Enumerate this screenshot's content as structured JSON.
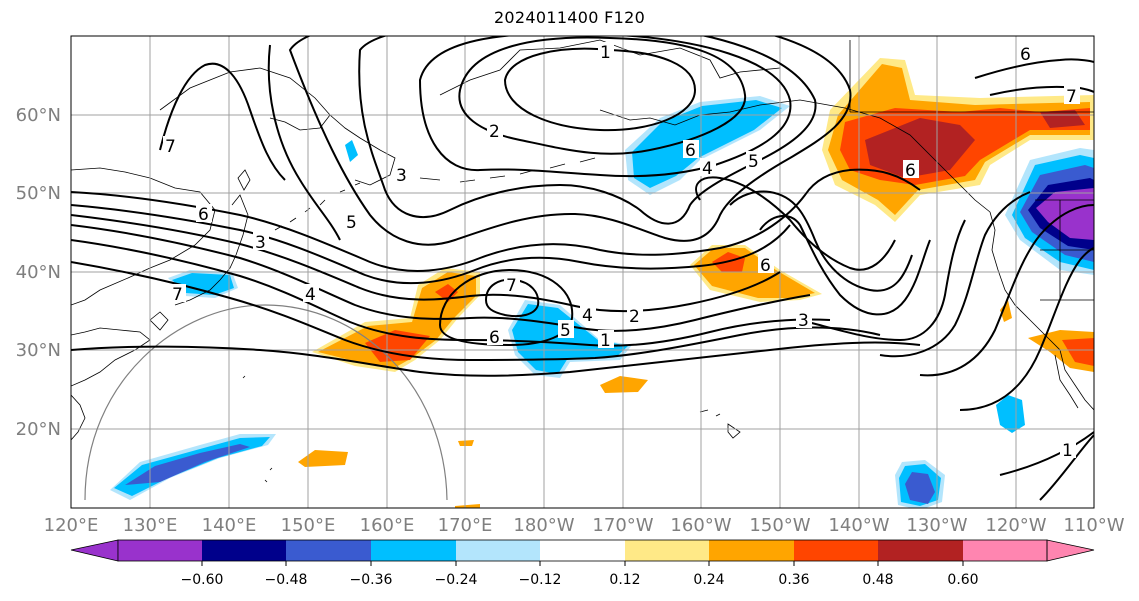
{
  "title": "2024011400 F120",
  "lat_labels": [
    "60°N",
    "50°N",
    "40°N",
    "30°N",
    "20°N"
  ],
  "lon_labels": [
    "120°E",
    "130°E",
    "140°E",
    "150°E",
    "160°E",
    "170°E",
    "180°W",
    "170°W",
    "160°W",
    "150°W",
    "140°W",
    "130°W",
    "120°W",
    "110°W"
  ],
  "contour_labels": [
    "1",
    "2",
    "3",
    "4",
    "5",
    "6",
    "7",
    "7",
    "6",
    "4",
    "5",
    "6",
    "7",
    "6",
    "5",
    "4",
    "3",
    "2",
    "1",
    "6",
    "3",
    "1",
    "6",
    "7"
  ],
  "colorbar": {
    "tick_labels": [
      "−0.60",
      "−0.48",
      "−0.36",
      "−0.24",
      "−0.12",
      "0.12",
      "0.24",
      "0.36",
      "0.48",
      "0.60"
    ],
    "colors": [
      "#9932cc",
      "#00008b",
      "#3a5bd0",
      "#00bfff",
      "#b3e5fc",
      "#ffffff",
      "#ffe987",
      "#ffa500",
      "#ff4500",
      "#b22222",
      "#ff85b0"
    ]
  },
  "colors": {
    "contour": "#000000",
    "grid": "#a0a0a0",
    "axis_labels": "#7f7f7f"
  }
}
